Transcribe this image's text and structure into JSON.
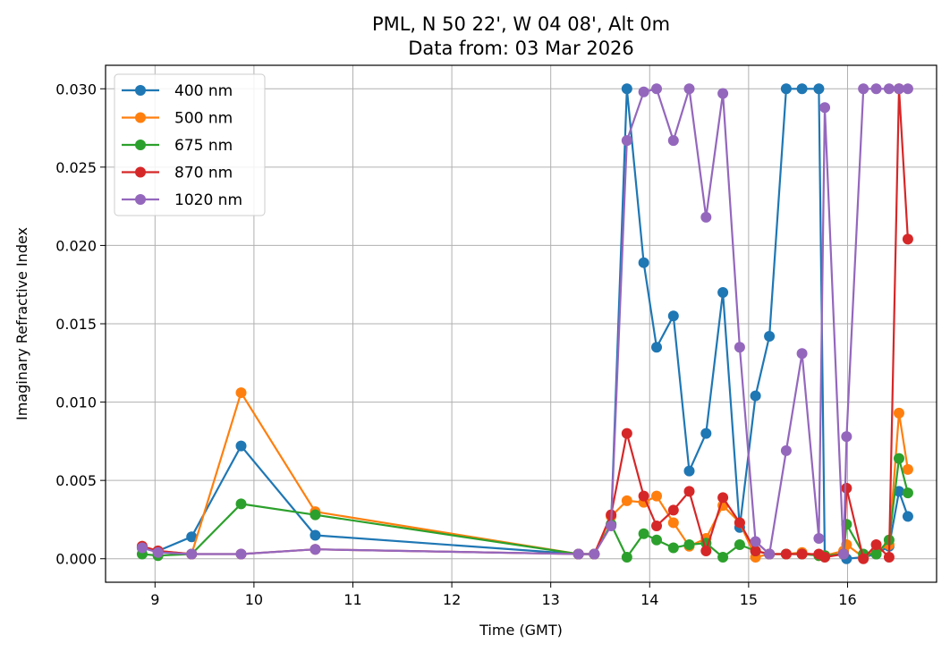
{
  "chart_data": {
    "type": "line",
    "title": "PML, N 50 22', W 04 08', Alt 0m",
    "subtitle": "Data from: 03 Mar 2026",
    "xlabel": "Time (GMT)",
    "ylabel": "Imaginary Refractive Index",
    "xlim": [
      8.5,
      16.9
    ],
    "ylim": [
      -0.0015,
      0.0315
    ],
    "xticks": [
      9,
      10,
      11,
      12,
      13,
      14,
      15,
      16
    ],
    "xtick_labels": [
      "9",
      "10",
      "11",
      "12",
      "13",
      "14",
      "15",
      "16"
    ],
    "yticks": [
      0,
      0.005,
      0.01,
      0.015,
      0.02,
      0.025,
      0.03
    ],
    "ytick_labels": [
      "0.000",
      "0.005",
      "0.010",
      "0.015",
      "0.020",
      "0.025",
      "0.030"
    ],
    "grid": true,
    "legend_position": "top-left",
    "x": [
      8.87,
      9.03,
      9.37,
      9.87,
      10.62,
      13.28,
      13.44,
      13.61,
      13.77,
      13.94,
      14.07,
      14.24,
      14.4,
      14.57,
      14.74,
      14.91,
      15.07,
      15.21,
      15.38,
      15.54,
      15.71,
      15.77,
      15.96,
      15.99,
      16.16,
      16.29,
      16.42,
      16.52,
      16.61
    ],
    "series": [
      {
        "name": "400 nm",
        "color": "#1f77b4",
        "values": [
          0.0007,
          0.0005,
          0.0014,
          0.0072,
          0.0015,
          0.0003,
          0.0003,
          0.0022,
          0.03,
          0.0189,
          0.0135,
          0.0155,
          0.0056,
          0.008,
          0.017,
          0.002,
          0.0104,
          0.0142,
          0.03,
          0.03,
          0.03,
          0.0002,
          0.0003,
          0.0,
          0.0001,
          0.0003,
          0.0008,
          0.0043,
          0.0027
        ]
      },
      {
        "name": "500 nm",
        "color": "#ff7f0e",
        "values": [
          0.0008,
          0.0005,
          0.0003,
          0.0106,
          0.003,
          0.0003,
          0.0003,
          0.0027,
          0.0037,
          0.0036,
          0.004,
          0.0023,
          0.0008,
          0.0013,
          0.0034,
          0.0023,
          0.0001,
          0.0003,
          0.0003,
          0.0004,
          0.0002,
          0.0002,
          0.0005,
          0.0009,
          0.0001,
          0.0005,
          0.0009,
          0.0093,
          0.0057
        ]
      },
      {
        "name": "675 nm",
        "color": "#2ca02c",
        "values": [
          0.0003,
          0.0002,
          0.0003,
          0.0035,
          0.0028,
          0.0003,
          0.0003,
          0.0022,
          0.0001,
          0.0016,
          0.0012,
          0.0007,
          0.0009,
          0.001,
          0.0001,
          0.0009,
          0.0005,
          0.0003,
          0.0003,
          0.0003,
          0.0002,
          0.0002,
          0.0003,
          0.0022,
          0.0003,
          0.0003,
          0.0012,
          0.0064,
          0.0042
        ]
      },
      {
        "name": "870 nm",
        "color": "#d62728",
        "values": [
          0.0008,
          0.0005,
          0.0003,
          0.0003,
          0.0006,
          0.0003,
          0.0003,
          0.0028,
          0.008,
          0.004,
          0.0021,
          0.0031,
          0.0043,
          0.0005,
          0.0039,
          0.0023,
          0.0005,
          0.0003,
          0.0003,
          0.0003,
          0.0003,
          0.0001,
          0.0003,
          0.0045,
          0.0,
          0.0009,
          0.0001,
          0.03,
          0.0204
        ]
      },
      {
        "name": "1020 nm",
        "color": "#9467bd",
        "values": [
          0.0007,
          0.0004,
          0.0003,
          0.0003,
          0.0006,
          0.0003,
          0.0003,
          0.0021,
          0.0267,
          0.0298,
          0.03,
          0.0267,
          0.03,
          0.0218,
          0.0297,
          0.0135,
          0.0011,
          0.0003,
          0.0069,
          0.0131,
          0.0013,
          0.0288,
          0.0003,
          0.0078,
          0.03,
          0.03,
          0.03,
          0.03,
          0.03
        ]
      }
    ]
  }
}
